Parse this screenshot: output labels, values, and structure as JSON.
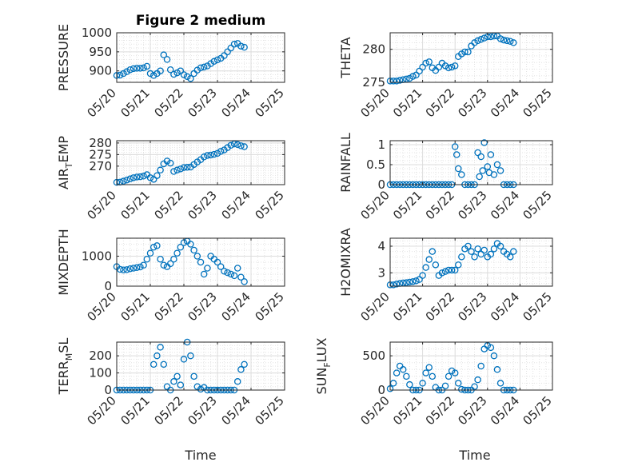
{
  "figure": {
    "title": "Figure 2 medium",
    "xlabel": "Time",
    "series_color": "#0072BD",
    "x_ticks": [
      "05/20",
      "05/21",
      "05/22",
      "05/23",
      "05/24",
      "05/25"
    ]
  },
  "chart_data": [
    {
      "type": "scatter",
      "ylabel": "PRESSURE",
      "ylim": [
        870,
        1000
      ],
      "yticks": [
        900,
        950,
        1000
      ],
      "xlim": [
        0,
        5
      ],
      "grid": true,
      "x": [
        0.0,
        0.1,
        0.2,
        0.3,
        0.4,
        0.5,
        0.6,
        0.7,
        0.8,
        0.9,
        1.0,
        1.1,
        1.2,
        1.3,
        1.4,
        1.5,
        1.6,
        1.7,
        1.8,
        1.9,
        2.0,
        2.1,
        2.2,
        2.3,
        2.4,
        2.5,
        2.6,
        2.7,
        2.8,
        2.9,
        3.0,
        3.1,
        3.2,
        3.3,
        3.4,
        3.5,
        3.6,
        3.7,
        3.8
      ],
      "y": [
        888,
        889,
        893,
        898,
        903,
        906,
        907,
        907,
        908,
        912,
        893,
        888,
        893,
        900,
        942,
        930,
        903,
        891,
        895,
        900,
        890,
        885,
        880,
        893,
        902,
        908,
        910,
        913,
        919,
        925,
        929,
        933,
        940,
        950,
        960,
        970,
        972,
        965,
        962
      ]
    },
    {
      "type": "scatter",
      "ylabel": "THETA",
      "ylim": [
        275,
        282.5
      ],
      "yticks": [
        275,
        280
      ],
      "xlim": [
        0,
        5
      ],
      "grid": true,
      "x": [
        0.0,
        0.1,
        0.2,
        0.3,
        0.4,
        0.5,
        0.6,
        0.7,
        0.8,
        0.9,
        1.0,
        1.1,
        1.2,
        1.3,
        1.4,
        1.5,
        1.6,
        1.7,
        1.8,
        1.9,
        2.0,
        2.1,
        2.2,
        2.3,
        2.4,
        2.5,
        2.6,
        2.7,
        2.8,
        2.9,
        3.0,
        3.1,
        3.2,
        3.3,
        3.4,
        3.5,
        3.6,
        3.7,
        3.8
      ],
      "y": [
        275.2,
        275.2,
        275.2,
        275.3,
        275.4,
        275.5,
        275.6,
        275.9,
        276.1,
        276.7,
        277.3,
        277.9,
        278.1,
        277.2,
        276.8,
        277.3,
        277.9,
        277.5,
        277.2,
        277.3,
        277.5,
        278.9,
        279.3,
        279.6,
        279.6,
        280.5,
        281.0,
        281.3,
        281.5,
        281.7,
        281.9,
        281.9,
        282.0,
        282.0,
        281.6,
        281.4,
        281.3,
        281.2,
        281.0
      ]
    },
    {
      "type": "scatter",
      "ylabel": "AIR_TEMP",
      "ylim": [
        262,
        281
      ],
      "yticks": [
        270,
        275,
        280
      ],
      "xlim": [
        0,
        5
      ],
      "grid": true,
      "x": [
        0.0,
        0.1,
        0.2,
        0.3,
        0.4,
        0.5,
        0.6,
        0.7,
        0.8,
        0.9,
        1.0,
        1.1,
        1.2,
        1.3,
        1.4,
        1.5,
        1.6,
        1.7,
        1.8,
        1.9,
        2.0,
        2.1,
        2.2,
        2.3,
        2.4,
        2.5,
        2.6,
        2.7,
        2.8,
        2.9,
        3.0,
        3.1,
        3.2,
        3.3,
        3.4,
        3.5,
        3.6,
        3.7,
        3.8
      ],
      "y": [
        263.0,
        263.1,
        263.5,
        264.0,
        264.5,
        265.0,
        265.3,
        265.4,
        265.7,
        266.3,
        265.0,
        264.3,
        265.9,
        268.3,
        271.0,
        272.2,
        271.3,
        267.7,
        268.3,
        268.8,
        269.4,
        269.5,
        269.6,
        270.7,
        271.8,
        272.8,
        274.0,
        274.6,
        274.8,
        275.1,
        275.5,
        276.4,
        277.0,
        278.0,
        279.0,
        279.6,
        279.3,
        278.8,
        278.4
      ]
    },
    {
      "type": "scatter",
      "ylabel": "RAINFALL",
      "ylim": [
        0,
        1.1
      ],
      "yticks": [
        0,
        0.5,
        1
      ],
      "xlim": [
        0,
        5
      ],
      "grid": true,
      "x": [
        0.0,
        0.1,
        0.2,
        0.3,
        0.4,
        0.5,
        0.6,
        0.7,
        0.8,
        0.9,
        1.0,
        1.1,
        1.2,
        1.3,
        1.4,
        1.5,
        1.6,
        1.7,
        1.8,
        1.9,
        2.0,
        2.05,
        2.1,
        2.2,
        2.3,
        2.4,
        2.5,
        2.6,
        2.7,
        2.75,
        2.8,
        2.85,
        2.9,
        3.0,
        3.05,
        3.1,
        3.2,
        3.3,
        3.4,
        3.5,
        3.6,
        3.7,
        3.8
      ],
      "y": [
        0,
        0,
        0,
        0,
        0,
        0,
        0,
        0,
        0,
        0,
        0,
        0,
        0,
        0,
        0,
        0,
        0,
        0,
        0,
        0,
        0.95,
        0.75,
        0.4,
        0.25,
        0,
        0,
        0,
        0,
        0.8,
        0.2,
        0.7,
        0.35,
        1.05,
        0.45,
        0.3,
        0.75,
        0.25,
        0.5,
        0.35,
        0,
        0,
        0,
        0
      ]
    },
    {
      "type": "scatter",
      "ylabel": "MIXDEPTH",
      "ylim": [
        0,
        1600
      ],
      "yticks": [
        0,
        1000
      ],
      "xlim": [
        0,
        5
      ],
      "grid": true,
      "x": [
        0.0,
        0.1,
        0.2,
        0.3,
        0.4,
        0.5,
        0.6,
        0.7,
        0.8,
        0.9,
        1.0,
        1.1,
        1.2,
        1.3,
        1.4,
        1.5,
        1.6,
        1.7,
        1.8,
        1.9,
        2.0,
        2.1,
        2.2,
        2.3,
        2.4,
        2.5,
        2.6,
        2.7,
        2.8,
        2.9,
        3.0,
        3.1,
        3.2,
        3.3,
        3.4,
        3.5,
        3.6,
        3.7,
        3.8
      ],
      "y": [
        650,
        560,
        540,
        550,
        580,
        600,
        620,
        640,
        700,
        900,
        1100,
        1300,
        1350,
        900,
        700,
        650,
        750,
        900,
        1100,
        1300,
        1450,
        1500,
        1400,
        1200,
        1000,
        800,
        400,
        600,
        1000,
        900,
        800,
        650,
        500,
        450,
        400,
        350,
        600,
        300,
        150
      ]
    },
    {
      "type": "scatter",
      "ylabel": "H2OMIXRA",
      "ylim": [
        2.5,
        4.3
      ],
      "yticks": [
        3,
        4
      ],
      "xlim": [
        0,
        5
      ],
      "grid": true,
      "x": [
        0.0,
        0.1,
        0.2,
        0.3,
        0.4,
        0.5,
        0.6,
        0.7,
        0.8,
        0.9,
        1.0,
        1.1,
        1.2,
        1.3,
        1.4,
        1.5,
        1.6,
        1.7,
        1.8,
        1.9,
        2.0,
        2.1,
        2.2,
        2.3,
        2.4,
        2.5,
        2.6,
        2.7,
        2.8,
        2.9,
        3.0,
        3.1,
        3.2,
        3.3,
        3.4,
        3.5,
        3.6,
        3.7,
        3.8
      ],
      "y": [
        2.55,
        2.55,
        2.58,
        2.6,
        2.62,
        2.63,
        2.65,
        2.67,
        2.7,
        2.75,
        2.9,
        3.2,
        3.5,
        3.8,
        3.3,
        2.9,
        3.0,
        3.05,
        3.1,
        3.1,
        3.1,
        3.3,
        3.6,
        3.9,
        4.0,
        3.8,
        3.6,
        3.9,
        3.7,
        3.85,
        3.6,
        3.7,
        3.9,
        4.1,
        4.0,
        3.8,
        3.7,
        3.6,
        3.8
      ]
    },
    {
      "type": "scatter",
      "ylabel": "TERR_MSL",
      "ylim": [
        0,
        280
      ],
      "yticks": [
        0,
        100,
        200
      ],
      "xlim": [
        0,
        5
      ],
      "grid": true,
      "x": [
        0.0,
        0.1,
        0.2,
        0.3,
        0.4,
        0.5,
        0.6,
        0.7,
        0.8,
        0.9,
        1.0,
        1.1,
        1.2,
        1.3,
        1.4,
        1.5,
        1.6,
        1.7,
        1.8,
        1.9,
        2.0,
        2.1,
        2.2,
        2.3,
        2.4,
        2.5,
        2.6,
        2.7,
        2.8,
        2.9,
        3.0,
        3.1,
        3.2,
        3.3,
        3.4,
        3.5,
        3.6,
        3.7,
        3.8
      ],
      "y": [
        0,
        0,
        0,
        0,
        0,
        0,
        0,
        0,
        0,
        0,
        0,
        150,
        200,
        250,
        150,
        20,
        0,
        50,
        80,
        30,
        180,
        280,
        200,
        80,
        20,
        5,
        15,
        0,
        0,
        0,
        0,
        0,
        0,
        0,
        0,
        0,
        50,
        120,
        150
      ]
    },
    {
      "type": "scatter",
      "ylabel": "SUN_FLUX",
      "ylim": [
        0,
        700
      ],
      "yticks": [
        0,
        500
      ],
      "xlim": [
        0,
        5
      ],
      "grid": true,
      "x": [
        0.0,
        0.1,
        0.2,
        0.3,
        0.4,
        0.5,
        0.6,
        0.7,
        0.8,
        0.9,
        1.0,
        1.1,
        1.2,
        1.3,
        1.4,
        1.5,
        1.6,
        1.7,
        1.8,
        1.9,
        2.0,
        2.1,
        2.2,
        2.3,
        2.4,
        2.5,
        2.6,
        2.7,
        2.8,
        2.9,
        3.0,
        3.1,
        3.2,
        3.3,
        3.4,
        3.5,
        3.6,
        3.7,
        3.8
      ],
      "y": [
        20,
        100,
        250,
        350,
        300,
        200,
        80,
        0,
        0,
        0,
        100,
        250,
        330,
        200,
        40,
        0,
        0,
        60,
        200,
        280,
        250,
        100,
        10,
        0,
        0,
        0,
        50,
        150,
        350,
        600,
        650,
        620,
        500,
        300,
        100,
        0,
        0,
        0,
        0
      ]
    }
  ]
}
